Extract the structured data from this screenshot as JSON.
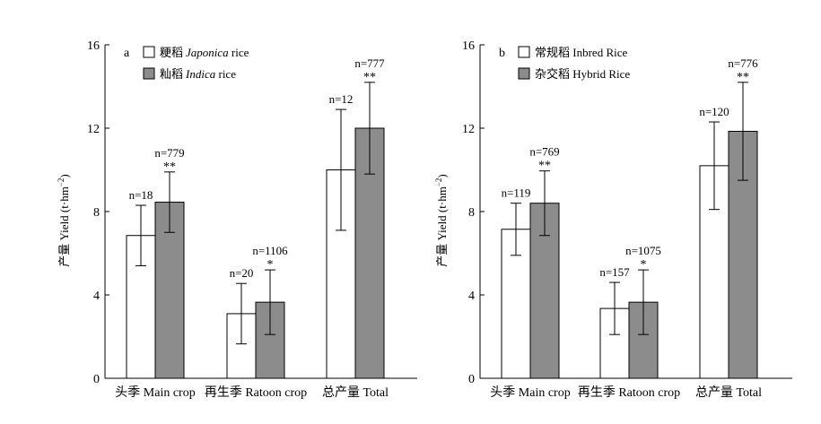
{
  "chart_data": [
    {
      "panel_label": "a",
      "type": "bar",
      "categories": [
        "头季 Main crop",
        "再生季 Ratoon crop",
        "总产量 Total"
      ],
      "ylabel": "产量 Yield (t·hm",
      "ylabel_unit_exponent": "−2",
      "ylabel_close": ")",
      "ylim": [
        0,
        16
      ],
      "yticks": [
        "0",
        "4",
        "8",
        "12",
        "16"
      ],
      "grid": false,
      "legend_position": "top-left",
      "series": [
        {
          "name_cn": "粳稻",
          "name_latin": "Japonica",
          "name_suffix": " rice",
          "color": "#ffffff",
          "values": [
            6.85,
            3.1,
            10.0
          ],
          "errors": [
            1.45,
            1.45,
            2.9
          ],
          "n_labels": [
            "n=18",
            "n=20",
            "n=12"
          ],
          "significance": [
            "",
            "",
            ""
          ]
        },
        {
          "name_cn": "籼稻",
          "name_latin": "Indica",
          "name_suffix": " rice",
          "color": "#8c8c8c",
          "values": [
            8.45,
            3.65,
            12.0
          ],
          "errors": [
            1.45,
            1.55,
            2.2
          ],
          "n_labels": [
            "n=779",
            "n=1106",
            "n=777"
          ],
          "significance": [
            "**",
            "*",
            "**"
          ]
        }
      ]
    },
    {
      "panel_label": "b",
      "type": "bar",
      "categories": [
        "头季 Main crop",
        "再生季 Ratoon crop",
        "总产量 Total"
      ],
      "ylabel": "产量 Yield (t·hm",
      "ylabel_unit_exponent": "−2",
      "ylabel_close": ")",
      "ylim": [
        0,
        16
      ],
      "yticks": [
        "0",
        "4",
        "8",
        "12",
        "16"
      ],
      "grid": false,
      "legend_position": "top-left",
      "series": [
        {
          "name_cn": "常规稻",
          "name_latin": "",
          "name_suffix": " Inbred Rice",
          "color": "#ffffff",
          "values": [
            7.15,
            3.35,
            10.2
          ],
          "errors": [
            1.25,
            1.25,
            2.1
          ],
          "n_labels": [
            "n=119",
            "n=157",
            "n=120"
          ],
          "significance": [
            "",
            "",
            ""
          ]
        },
        {
          "name_cn": "杂交稻",
          "name_latin": "",
          "name_suffix": " Hybrid Rice",
          "color": "#8c8c8c",
          "values": [
            8.4,
            3.65,
            11.85
          ],
          "errors": [
            1.55,
            1.55,
            2.35
          ],
          "n_labels": [
            "n=769",
            "n=1075",
            "n=776"
          ],
          "significance": [
            "**",
            "*",
            "**"
          ]
        }
      ]
    }
  ]
}
